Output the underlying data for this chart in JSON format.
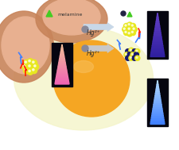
{
  "bg_color": "#ffffff",
  "egg_yolk_color": "#f5a623",
  "egg_white_color": "#f0f0c0",
  "egg_shell_color": "#c8845a",
  "nanocluster_yellow": "#e8e820",
  "nanocluster_dark": "#1a1a6e",
  "arrow_color": "#c8c8c8",
  "arrow_edge": "#888888",
  "pink_cone_top": "#e080c0",
  "pink_cone_bot": "#f0c0a0",
  "blue_cone_top": "#4080ff",
  "blue_cone_mid": "#80c0ff",
  "blue_cone_bot": "#c0e0ff",
  "purple_cone_top": "#3020a0",
  "purple_cone_mid": "#6040c0",
  "purple_cone_bot": "#9060e0",
  "hg2_label": "Hg²⁺",
  "melamine_label": "▲ melamine",
  "lightning_red": "#ff2000",
  "lightning_blue": "#4080ff",
  "figsize": [
    2.25,
    1.89
  ],
  "dpi": 100
}
